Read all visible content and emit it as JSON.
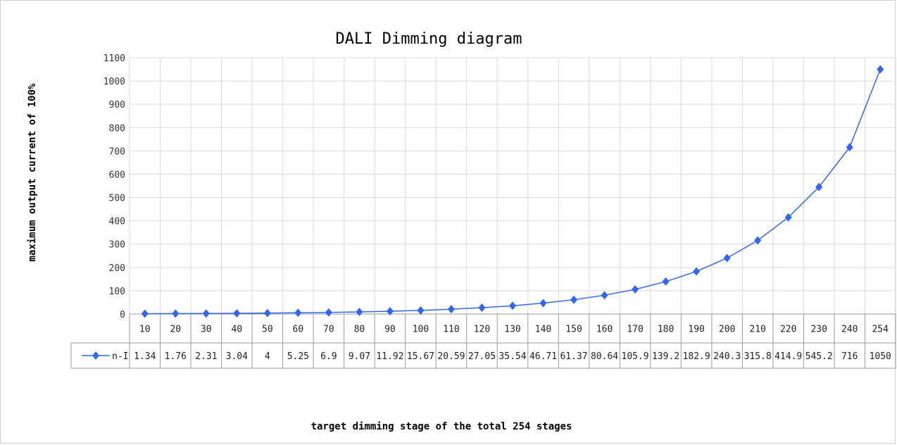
{
  "chart_data": {
    "type": "line",
    "title": "DALI Dimming diagram",
    "xlabel": "target dimming stage of the total 254 stages",
    "ylabel": "maximum output current of 100%",
    "categories": [
      "10",
      "20",
      "30",
      "40",
      "50",
      "60",
      "70",
      "80",
      "90",
      "100",
      "110",
      "120",
      "130",
      "140",
      "150",
      "160",
      "170",
      "180",
      "190",
      "200",
      "210",
      "220",
      "230",
      "240",
      "254"
    ],
    "series": [
      {
        "name": "n-I",
        "values": [
          1.34,
          1.76,
          2.31,
          3.04,
          4,
          5.25,
          6.9,
          9.07,
          11.92,
          15.67,
          20.59,
          27.05,
          35.54,
          46.71,
          61.37,
          80.64,
          105.9,
          139.2,
          182.9,
          240.3,
          315.8,
          414.9,
          545.2,
          716,
          1050
        ],
        "labels": [
          "1.34",
          "1.76",
          "2.31",
          "3.04",
          "4",
          "5.25",
          "6.9",
          "9.07",
          "11.92",
          "15.67",
          "20.59",
          "27.05",
          "35.54",
          "46.71",
          "61.37",
          "80.64",
          "105.9",
          "139.2",
          "182.9",
          "240.3",
          "315.8",
          "414.9",
          "545.2",
          "716",
          "1050"
        ],
        "color": "#3366ee",
        "marker": "diamond"
      }
    ],
    "ylim": [
      0,
      1100
    ],
    "yticks": [
      "0",
      "100",
      "200",
      "300",
      "400",
      "500",
      "600",
      "700",
      "800",
      "900",
      "1000",
      "1100"
    ],
    "grid": true,
    "data_table": true
  }
}
